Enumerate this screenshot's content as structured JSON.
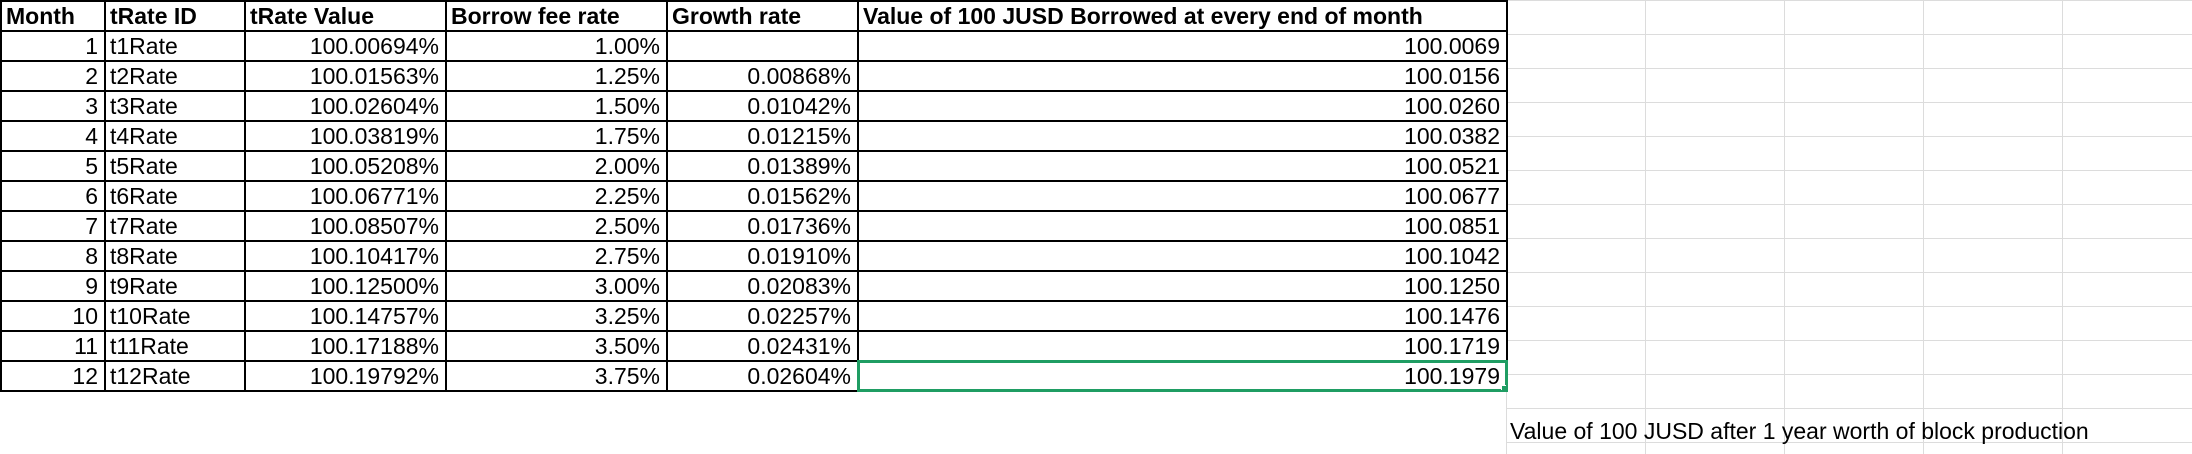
{
  "columns": [
    "Month",
    "tRate ID",
    "tRate Value",
    "Borrow fee rate",
    "Growth rate",
    "Value of 100 JUSD Borrowed at every end of month"
  ],
  "rows": [
    {
      "month": "1",
      "rate_id": "t1Rate",
      "rate_value": "100.00694%",
      "fee": "1.00%",
      "growth": "",
      "value": "100.0069"
    },
    {
      "month": "2",
      "rate_id": "t2Rate",
      "rate_value": "100.01563%",
      "fee": "1.25%",
      "growth": "0.00868%",
      "value": "100.0156"
    },
    {
      "month": "3",
      "rate_id": "t3Rate",
      "rate_value": "100.02604%",
      "fee": "1.50%",
      "growth": "0.01042%",
      "value": "100.0260"
    },
    {
      "month": "4",
      "rate_id": "t4Rate",
      "rate_value": "100.03819%",
      "fee": "1.75%",
      "growth": "0.01215%",
      "value": "100.0382"
    },
    {
      "month": "5",
      "rate_id": "t5Rate",
      "rate_value": "100.05208%",
      "fee": "2.00%",
      "growth": "0.01389%",
      "value": "100.0521"
    },
    {
      "month": "6",
      "rate_id": "t6Rate",
      "rate_value": "100.06771%",
      "fee": "2.25%",
      "growth": "0.01562%",
      "value": "100.0677"
    },
    {
      "month": "7",
      "rate_id": "t7Rate",
      "rate_value": "100.08507%",
      "fee": "2.50%",
      "growth": "0.01736%",
      "value": "100.0851"
    },
    {
      "month": "8",
      "rate_id": "t8Rate",
      "rate_value": "100.10417%",
      "fee": "2.75%",
      "growth": "0.01910%",
      "value": "100.1042"
    },
    {
      "month": "9",
      "rate_id": "t9Rate",
      "rate_value": "100.12500%",
      "fee": "3.00%",
      "growth": "0.02083%",
      "value": "100.1250"
    },
    {
      "month": "10",
      "rate_id": "t10Rate",
      "rate_value": "100.14757%",
      "fee": "3.25%",
      "growth": "0.02257%",
      "value": "100.1476"
    },
    {
      "month": "11",
      "rate_id": "t11Rate",
      "rate_value": "100.17188%",
      "fee": "3.50%",
      "growth": "0.02431%",
      "value": "100.1719"
    },
    {
      "month": "12",
      "rate_id": "t12Rate",
      "rate_value": "100.19792%",
      "fee": "3.75%",
      "growth": "0.02604%",
      "value": "100.1979"
    }
  ],
  "row_12_note": "Value of 100 JUSD after 1 year worth of block production",
  "colors": {
    "selection": "#1f9d63",
    "gridline": "#dcdcdc",
    "border": "#000000"
  }
}
